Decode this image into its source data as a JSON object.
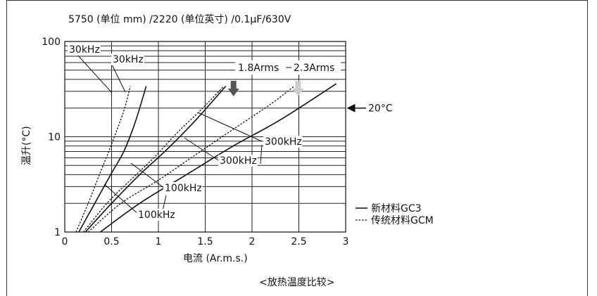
{
  "chart_data": {
    "type": "line",
    "title": "5750 (单位 mm) /2220 (单位英寸) /0.1μF/630V",
    "xlabel": "电流 (Ar.m.s.)",
    "ylabel": "温升(°C)",
    "caption": "<放热温度比较>",
    "xlim": [
      0,
      3
    ],
    "ylim": [
      1,
      100
    ],
    "yscale": "log",
    "xticks": [
      "0",
      "0.5",
      "1",
      "1.5",
      "2",
      "2.5",
      "3"
    ],
    "yticks": [
      "1",
      "10",
      "100"
    ],
    "grid": true,
    "legend": [
      {
        "label": "新材料GC3",
        "style": "solid"
      },
      {
        "label": "传统材料GCM",
        "style": "dotted"
      }
    ],
    "series": [
      {
        "material": "GCM",
        "style": "dotted",
        "label": "30kHz",
        "x": [
          0.12,
          0.25,
          0.37,
          0.47,
          0.56,
          0.64,
          0.7
        ],
        "y": [
          1,
          2,
          4,
          7,
          12,
          20,
          34
        ]
      },
      {
        "material": "GC3",
        "style": "solid",
        "label": "30kHz",
        "x": [
          0.15,
          0.32,
          0.49,
          0.63,
          0.75,
          0.87
        ],
        "y": [
          1,
          2,
          4,
          7,
          14,
          34
        ]
      },
      {
        "material": "GCM",
        "style": "dotted",
        "label": "100kHz",
        "x": [
          0.2,
          0.45,
          0.7,
          0.95,
          1.2,
          1.45,
          1.7
        ],
        "y": [
          1,
          2,
          3.5,
          6,
          11,
          19,
          34
        ]
      },
      {
        "material": "GC3",
        "style": "solid",
        "label": "100kHz",
        "x": [
          0.22,
          0.5,
          0.8,
          1.1,
          1.4,
          1.72
        ],
        "y": [
          1,
          2,
          4,
          7.5,
          15,
          34
        ]
      },
      {
        "material": "GCM",
        "style": "dotted",
        "label": "300kHz",
        "x": [
          0.25,
          0.6,
          1.0,
          1.4,
          1.8,
          2.2,
          2.45
        ],
        "y": [
          1,
          2,
          3.5,
          6.5,
          12,
          22,
          34
        ]
      },
      {
        "material": "GC3",
        "style": "solid",
        "label": "300kHz",
        "x": [
          0.38,
          0.8,
          1.3,
          1.8,
          2.3,
          2.9
        ],
        "y": [
          1,
          2,
          4,
          8,
          15,
          36
        ]
      }
    ],
    "annotations": [
      {
        "text": "1.8Arms",
        "color": "#555555",
        "x": 1.9
      },
      {
        "text": "2.3Arms",
        "color": "#cccccc",
        "x": 2.5
      },
      {
        "text": "20°C",
        "y": 20
      }
    ]
  }
}
